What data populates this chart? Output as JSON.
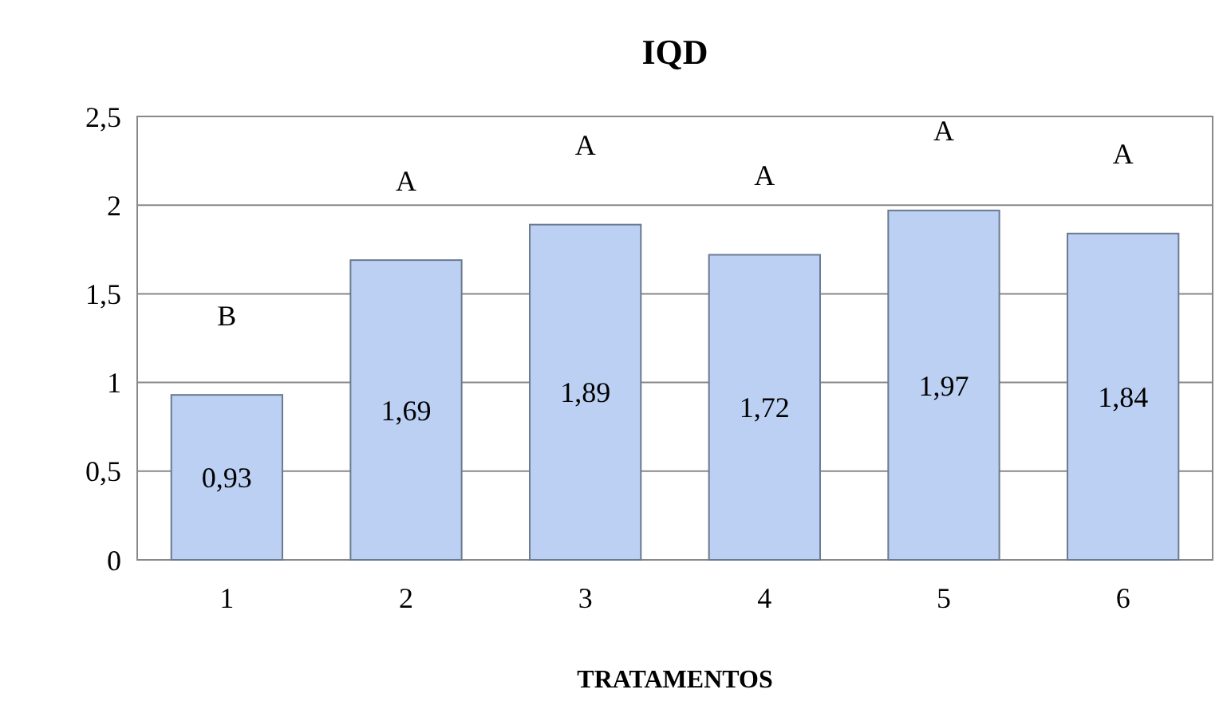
{
  "chart_data": {
    "type": "bar",
    "title": "IQD",
    "xlabel": "TRATAMENTOS",
    "categories": [
      "1",
      "2",
      "3",
      "4",
      "5",
      "6"
    ],
    "values": [
      0.93,
      1.69,
      1.89,
      1.72,
      1.97,
      1.84
    ],
    "value_labels": [
      "0,93",
      "1,69",
      "1,89",
      "1,72",
      "1,97",
      "1,84"
    ],
    "color": "#bcd0f3",
    "ylim": [
      0,
      2.5
    ],
    "yticks": [
      0,
      {
        "value": 0.5,
        "label": "0,5"
      },
      1,
      {
        "value": 1.5,
        "label": "1,5"
      },
      2,
      {
        "value": 2.5,
        "label": "2,5"
      }
    ],
    "grid": "y",
    "annotations": [
      {
        "text": "B",
        "x": "1",
        "y": 0.93
      },
      {
        "text": "A",
        "x": "2",
        "y": 1.69
      },
      {
        "text": "A",
        "x": "3",
        "y": 1.89
      },
      {
        "text": "A",
        "x": "4",
        "y": 1.72
      },
      {
        "text": "A",
        "x": "5",
        "y": 1.97
      },
      {
        "text": "A",
        "x": "6",
        "y": 1.84
      }
    ]
  }
}
